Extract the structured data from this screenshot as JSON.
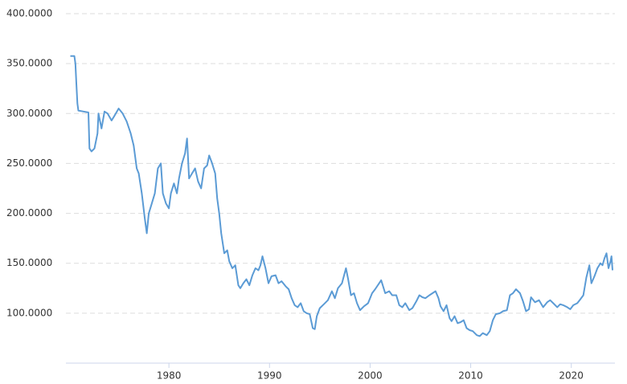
{
  "chart_data": {
    "type": "line",
    "x": [
      1970.2,
      1970.6,
      1970.7,
      1970.8,
      1970.9,
      1971.0,
      1971.5,
      1972.0,
      1972.1,
      1972.3,
      1972.6,
      1972.9,
      1973.0,
      1973.3,
      1973.6,
      1973.9,
      1974.3,
      1974.6,
      1975.0,
      1975.4,
      1975.8,
      1976.2,
      1976.5,
      1976.8,
      1977.0,
      1977.3,
      1977.6,
      1977.8,
      1978.0,
      1978.3,
      1978.6,
      1978.9,
      1979.2,
      1979.4,
      1979.7,
      1980.0,
      1980.2,
      1980.5,
      1980.8,
      1981.0,
      1981.3,
      1981.6,
      1981.8,
      1982.0,
      1982.3,
      1982.6,
      1982.9,
      1983.2,
      1983.5,
      1983.8,
      1984.0,
      1984.3,
      1984.6,
      1984.8,
      1985.0,
      1985.2,
      1985.5,
      1985.8,
      1986.0,
      1986.3,
      1986.6,
      1986.9,
      1987.1,
      1987.4,
      1987.7,
      1988.0,
      1988.3,
      1988.6,
      1988.9,
      1989.1,
      1989.3,
      1989.6,
      1989.9,
      1990.2,
      1990.6,
      1990.9,
      1991.2,
      1991.6,
      1991.9,
      1992.2,
      1992.5,
      1992.8,
      1993.1,
      1993.4,
      1993.7,
      1994.0,
      1994.3,
      1994.5,
      1994.7,
      1995.0,
      1995.4,
      1995.8,
      1996.2,
      1996.5,
      1996.8,
      1997.2,
      1997.6,
      1997.8,
      1998.1,
      1998.4,
      1998.7,
      1999.0,
      1999.4,
      1999.8,
      2000.2,
      2000.5,
      2000.9,
      2001.1,
      2001.5,
      2001.9,
      2002.2,
      2002.6,
      2002.9,
      2003.2,
      2003.5,
      2003.9,
      2004.2,
      2004.6,
      2004.9,
      2005.2,
      2005.5,
      2005.9,
      2006.2,
      2006.5,
      2006.8,
      2007.0,
      2007.3,
      2007.6,
      2007.9,
      2008.1,
      2008.4,
      2008.7,
      2009.0,
      2009.3,
      2009.6,
      2009.9,
      2010.2,
      2010.6,
      2010.9,
      2011.2,
      2011.6,
      2011.9,
      2012.2,
      2012.5,
      2012.9,
      2013.2,
      2013.6,
      2013.9,
      2014.2,
      2014.5,
      2014.9,
      2015.2,
      2015.5,
      2015.8,
      2016.0,
      2016.4,
      2016.8,
      2017.2,
      2017.6,
      2017.9,
      2018.2,
      2018.6,
      2018.9,
      2019.2,
      2019.6,
      2019.9,
      2020.2,
      2020.6,
      2020.9,
      2021.2,
      2021.5,
      2021.8,
      2022.0,
      2022.3,
      2022.6,
      2022.9,
      2023.1,
      2023.3,
      2023.5,
      2023.7,
      2023.9,
      2024.0,
      2024.1
    ],
    "values": [
      357.6,
      357.6,
      350,
      330,
      310,
      303,
      302,
      301,
      265,
      262,
      265,
      280,
      300,
      285,
      302,
      300,
      293,
      298,
      305,
      300,
      292,
      280,
      268,
      245,
      240,
      220,
      195,
      180,
      200,
      210,
      220,
      245,
      250,
      220,
      210,
      205,
      220,
      230,
      220,
      235,
      250,
      260,
      275,
      235,
      240,
      245,
      232,
      225,
      245,
      248,
      258,
      250,
      240,
      215,
      200,
      180,
      160,
      163,
      152,
      145,
      148,
      128,
      125,
      130,
      134,
      128,
      138,
      145,
      143,
      148,
      157,
      145,
      130,
      137,
      138,
      130,
      132,
      127,
      124,
      115,
      108,
      106,
      110,
      102,
      100,
      99,
      85,
      84,
      97,
      105,
      109,
      113,
      122,
      115,
      125,
      130,
      145,
      135,
      118,
      120,
      110,
      103,
      107,
      110,
      120,
      124,
      130,
      133,
      120,
      122,
      118,
      118,
      108,
      106,
      110,
      103,
      105,
      112,
      118,
      116,
      115,
      118,
      120,
      122,
      115,
      107,
      102,
      108,
      95,
      92,
      97,
      90,
      91,
      93,
      85,
      83,
      82,
      78,
      77,
      80,
      78,
      82,
      93,
      99,
      100,
      102,
      103,
      118,
      120,
      124,
      120,
      112,
      102,
      104,
      116,
      111,
      113,
      106,
      111,
      113,
      110,
      106,
      109,
      108,
      106,
      104,
      108,
      110,
      114,
      118,
      136,
      148,
      130,
      137,
      145,
      150,
      148,
      155,
      160,
      145,
      152,
      157,
      143
    ],
    "color": "#5b9bd5",
    "xlim": [
      1970,
      2024.1
    ],
    "xticks": [
      1980,
      1990,
      2000,
      2010,
      2020
    ],
    "ylim": [
      50,
      400
    ],
    "yticks": [
      {
        "value": 100,
        "label": "100.0000"
      },
      {
        "value": 150,
        "label": "150.0000"
      },
      {
        "value": 200,
        "label": "200.0000"
      },
      {
        "value": 250,
        "label": "250.0000"
      },
      {
        "value": 300,
        "label": "300.0000"
      },
      {
        "value": 350,
        "label": "350.0000"
      },
      {
        "value": 400,
        "label": "400.0000"
      }
    ],
    "grid": true
  }
}
